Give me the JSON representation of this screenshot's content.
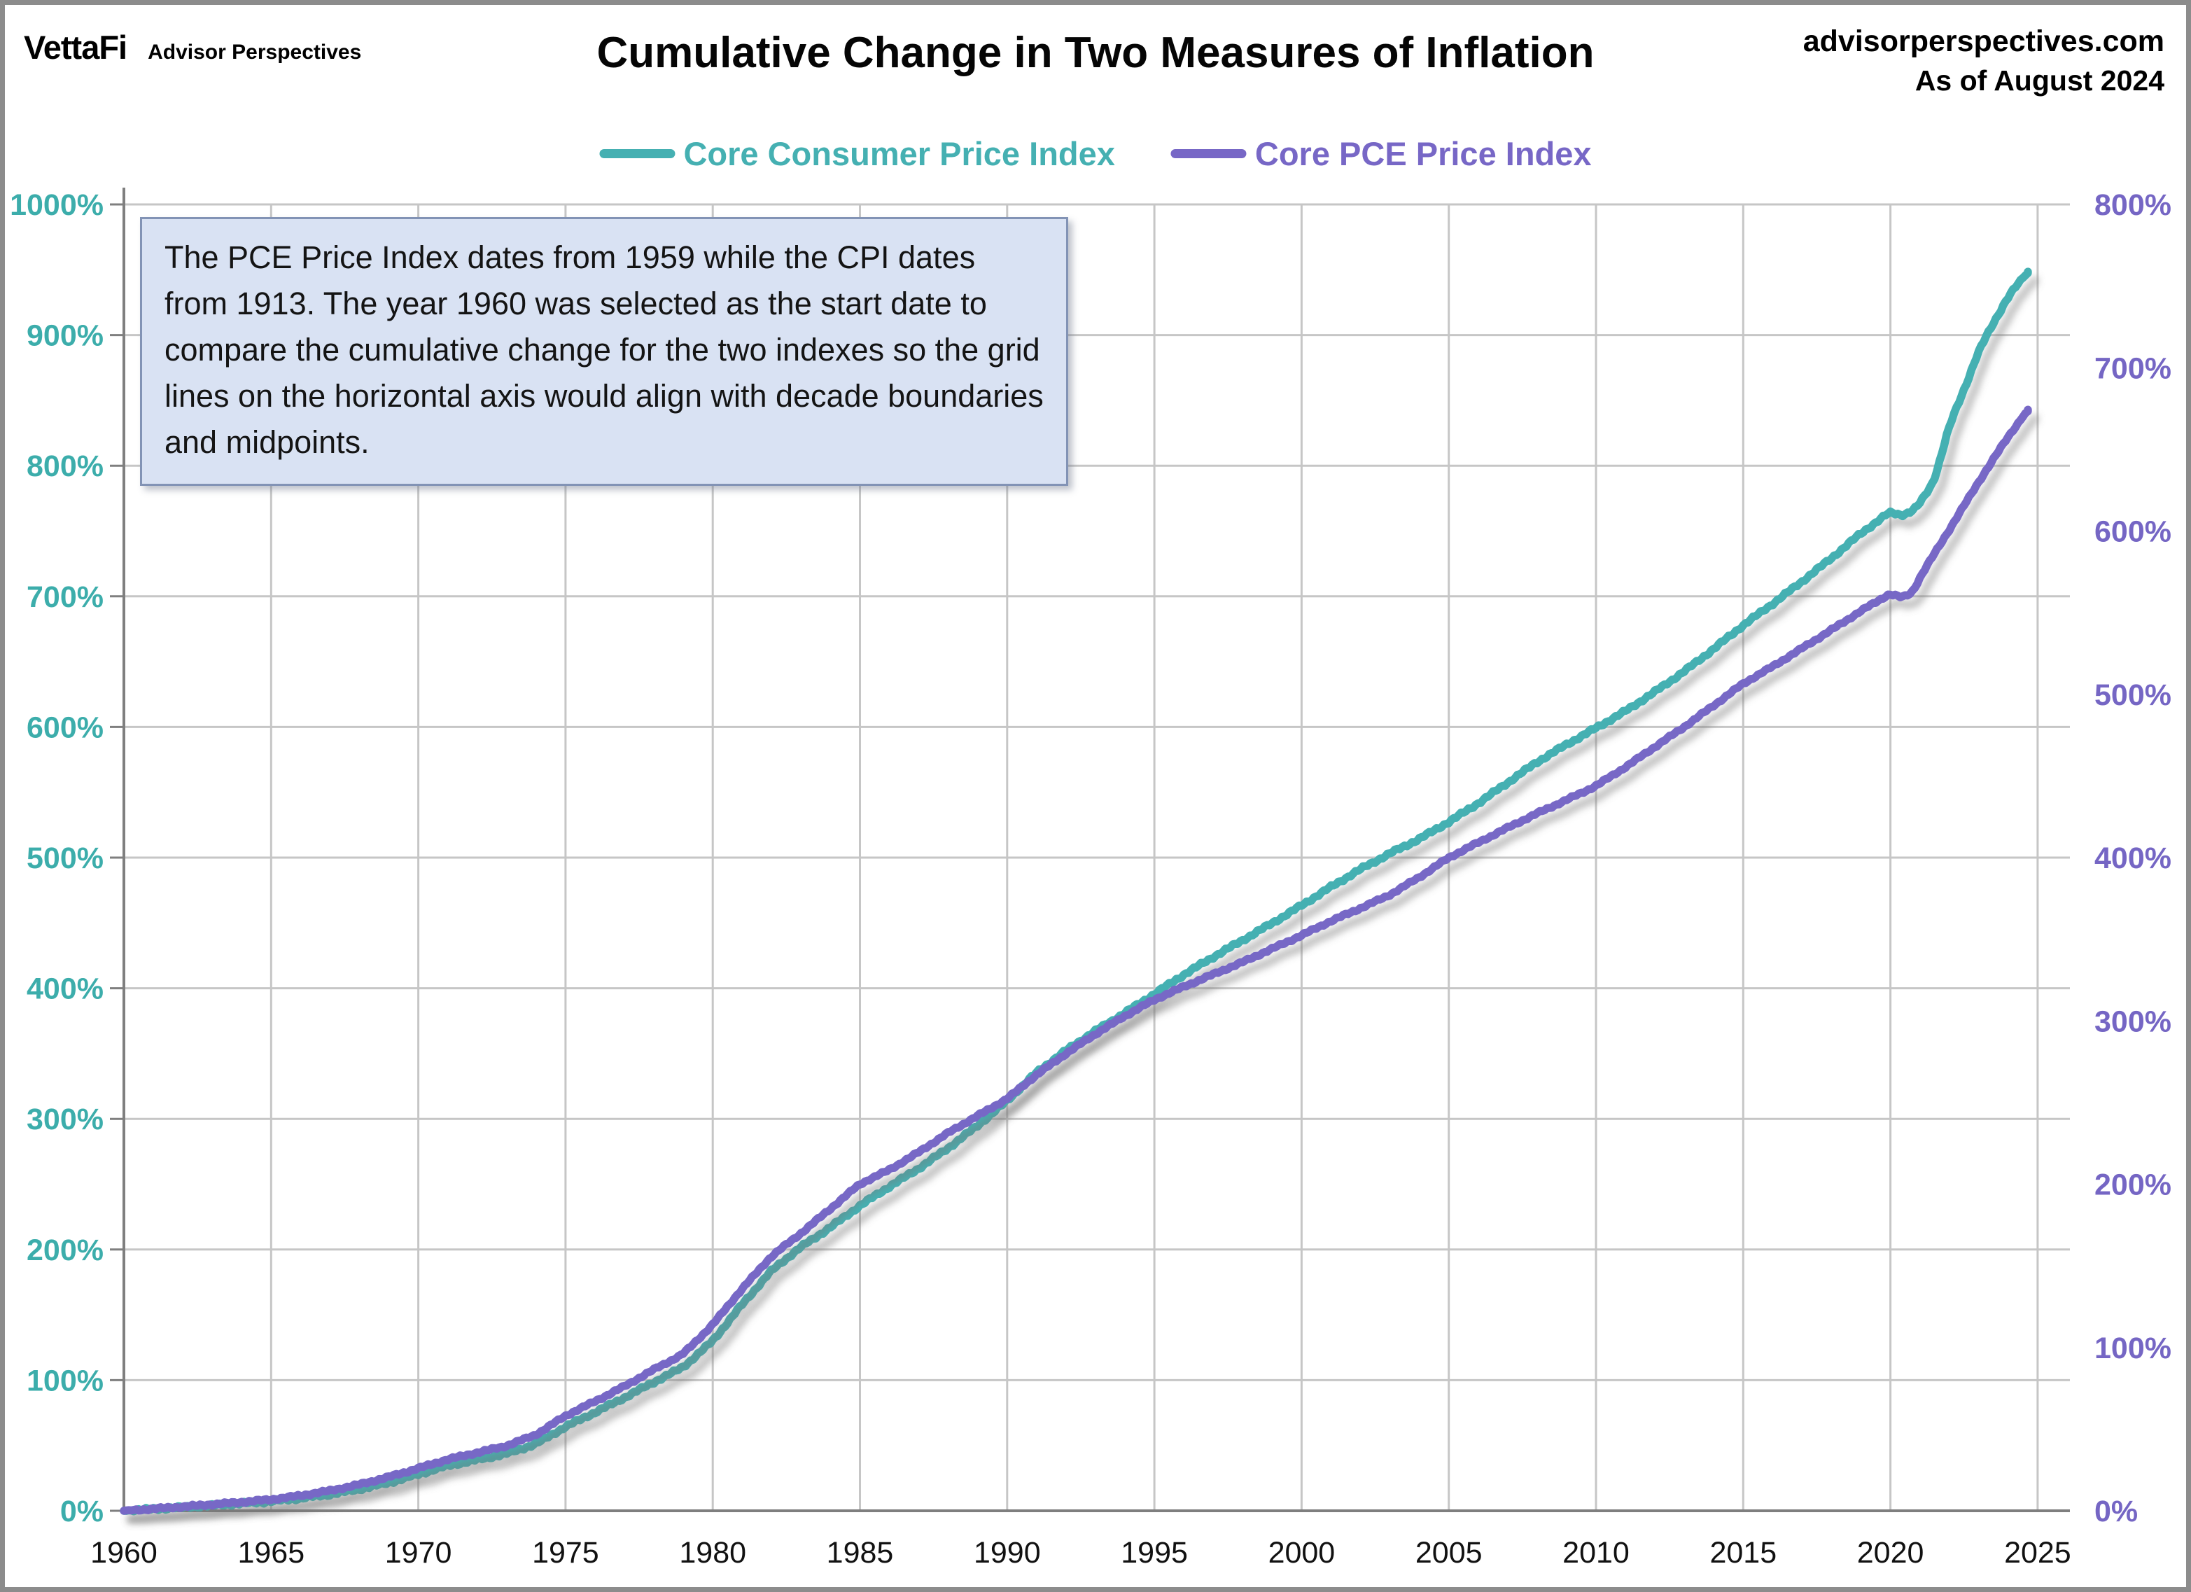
{
  "header": {
    "logo_primary": "VettaFi",
    "logo_secondary": "Advisor Perspectives",
    "title": "Cumulative Change in Two Measures of Inflation",
    "site": "advisorperspectives.com",
    "as_of": "As of August 2024"
  },
  "annotation": {
    "text": "The PCE Price Index dates from 1959 while the CPI dates from 1913.  The year 1960 was selected as the start date to compare the cumulative change for the two indexes so the grid lines on the horizontal axis would align with decade boundaries and midpoints."
  },
  "chart_data": {
    "type": "line",
    "title": "Cumulative Change in Two Measures of Inflation",
    "as_of_label": "As of August 2024",
    "grid": true,
    "legend_position": "top",
    "colors": {
      "teal_line": "#45B0B2",
      "teal_text": "#3CADAB",
      "purple_line": "#7767C6",
      "purple_text": "#7566C4",
      "gridline": "#C6C6C6",
      "axis": "#7F7F7F",
      "x_label": "#111111",
      "annotation_fill": "#D9E2F3",
      "annotation_border": "#8293B5"
    },
    "x_axis": {
      "ticks": [
        1960,
        1965,
        1970,
        1975,
        1980,
        1985,
        1990,
        1995,
        2000,
        2005,
        2010,
        2015,
        2020,
        2025
      ],
      "range": [
        1960,
        2026.1
      ]
    },
    "y_axis_left": {
      "series": "Core Consumer Price Index",
      "ticks": [
        "0%",
        "100%",
        "200%",
        "300%",
        "400%",
        "500%",
        "600%",
        "700%",
        "800%",
        "900%",
        "1000%"
      ],
      "range": [
        0,
        1000
      ]
    },
    "y_axis_right": {
      "series": "Core PCE Price Index",
      "ticks": [
        "0%",
        "100%",
        "200%",
        "300%",
        "400%",
        "500%",
        "600%",
        "700%",
        "800%"
      ],
      "range": [
        0,
        800
      ]
    },
    "series": [
      {
        "name": "Core Consumer Price Index",
        "axis": "left",
        "color": "#45B0B2",
        "points": [
          [
            1960,
            0
          ],
          [
            1961,
            1.3
          ],
          [
            1962,
            2.7
          ],
          [
            1963,
            4.1
          ],
          [
            1964,
            5.6
          ],
          [
            1965,
            7.2
          ],
          [
            1966,
            9.6
          ],
          [
            1967,
            12.6
          ],
          [
            1968,
            16.6
          ],
          [
            1969,
            21.5
          ],
          [
            1970,
            28
          ],
          [
            1971,
            34.6
          ],
          [
            1972,
            39.1
          ],
          [
            1973,
            43.7
          ],
          [
            1974,
            51.2
          ],
          [
            1975,
            64.4
          ],
          [
            1976,
            75.3
          ],
          [
            1977,
            86.6
          ],
          [
            1978,
            98.5
          ],
          [
            1979,
            110
          ],
          [
            1980,
            130
          ],
          [
            1981,
            158
          ],
          [
            1982,
            184
          ],
          [
            1983,
            202
          ],
          [
            1984,
            217
          ],
          [
            1985,
            233.6
          ],
          [
            1986,
            248.2
          ],
          [
            1987,
            262.1
          ],
          [
            1988,
            277.7
          ],
          [
            1989,
            294.9
          ],
          [
            1990,
            313.9
          ],
          [
            1991,
            335.6
          ],
          [
            1992,
            352.4
          ],
          [
            1993,
            367.4
          ],
          [
            1994,
            381.1
          ],
          [
            1995,
            395.6
          ],
          [
            1996,
            410.4
          ],
          [
            1997,
            423.9
          ],
          [
            1998,
            436.8
          ],
          [
            1999,
            449.8
          ],
          [
            2000,
            463.4
          ],
          [
            2001,
            477.6
          ],
          [
            2002,
            491.1
          ],
          [
            2003,
            503.2
          ],
          [
            2004,
            514.3
          ],
          [
            2005,
            527.3
          ],
          [
            2006,
            541.6
          ],
          [
            2007,
            557.4
          ],
          [
            2008,
            573.2
          ],
          [
            2009,
            586.6
          ],
          [
            2010,
            599.2
          ],
          [
            2011,
            612.1
          ],
          [
            2012,
            626.9
          ],
          [
            2013,
            642.6
          ],
          [
            2014,
            659.8
          ],
          [
            2015,
            677.9
          ],
          [
            2016,
            694.3
          ],
          [
            2017,
            711.4
          ],
          [
            2018,
            729.3
          ],
          [
            2019,
            748.2
          ],
          [
            2020,
            764.8
          ],
          [
            2020.4,
            761.8
          ],
          [
            2020.8,
            766
          ],
          [
            2021,
            770.9
          ],
          [
            2021.5,
            789
          ],
          [
            2022,
            830.6
          ],
          [
            2022.5,
            858
          ],
          [
            2023,
            888.1
          ],
          [
            2023.5,
            909
          ],
          [
            2024,
            929.6
          ],
          [
            2024.33,
            939
          ],
          [
            2024.67,
            948.5
          ]
        ]
      },
      {
        "name": "Core PCE Price Index",
        "axis": "right",
        "color": "#7767C6",
        "points": [
          [
            1960,
            0
          ],
          [
            1961,
            1.2
          ],
          [
            1962,
            2.5
          ],
          [
            1963,
            3.9
          ],
          [
            1964,
            5.3
          ],
          [
            1965,
            6.9
          ],
          [
            1966,
            9.3
          ],
          [
            1967,
            12.3
          ],
          [
            1968,
            16.1
          ],
          [
            1969,
            20.7
          ],
          [
            1970,
            26
          ],
          [
            1971,
            31.5
          ],
          [
            1972,
            35.6
          ],
          [
            1973,
            39.8
          ],
          [
            1974,
            46.6
          ],
          [
            1975,
            58.2
          ],
          [
            1976,
            67
          ],
          [
            1977,
            76.2
          ],
          [
            1978,
            86.5
          ],
          [
            1979,
            96
          ],
          [
            1980,
            114
          ],
          [
            1981,
            136
          ],
          [
            1982,
            156
          ],
          [
            1983,
            170
          ],
          [
            1984,
            185
          ],
          [
            1985,
            200.2
          ],
          [
            1986,
            208.8
          ],
          [
            1987,
            219.6
          ],
          [
            1988,
            231.5
          ],
          [
            1989,
            241.9
          ],
          [
            1990,
            252.3
          ],
          [
            1991,
            267
          ],
          [
            1992,
            280
          ],
          [
            1993,
            292
          ],
          [
            1994,
            303
          ],
          [
            1995,
            313
          ],
          [
            1996,
            321
          ],
          [
            1997,
            328.5
          ],
          [
            1998,
            336
          ],
          [
            1999,
            344.2
          ],
          [
            2000,
            352.4
          ],
          [
            2001,
            361.2
          ],
          [
            2002,
            369
          ],
          [
            2003,
            377.2
          ],
          [
            2004,
            388
          ],
          [
            2005,
            400
          ],
          [
            2006,
            409.2
          ],
          [
            2007,
            418.3
          ],
          [
            2008,
            427.1
          ],
          [
            2009,
            435.3
          ],
          [
            2010,
            443.9
          ],
          [
            2011,
            455.4
          ],
          [
            2012,
            467.8
          ],
          [
            2013,
            480.1
          ],
          [
            2014,
            493.2
          ],
          [
            2015,
            506.6
          ],
          [
            2016,
            517
          ],
          [
            2017,
            528.2
          ],
          [
            2018,
            539.5
          ],
          [
            2019,
            551
          ],
          [
            2020,
            561.9
          ],
          [
            2020.4,
            558.8
          ],
          [
            2020.8,
            563
          ],
          [
            2021,
            571.7
          ],
          [
            2022,
            600.8
          ],
          [
            2023,
            630.2
          ],
          [
            2024,
            657.8
          ],
          [
            2024.67,
            674.3
          ]
        ]
      }
    ]
  }
}
